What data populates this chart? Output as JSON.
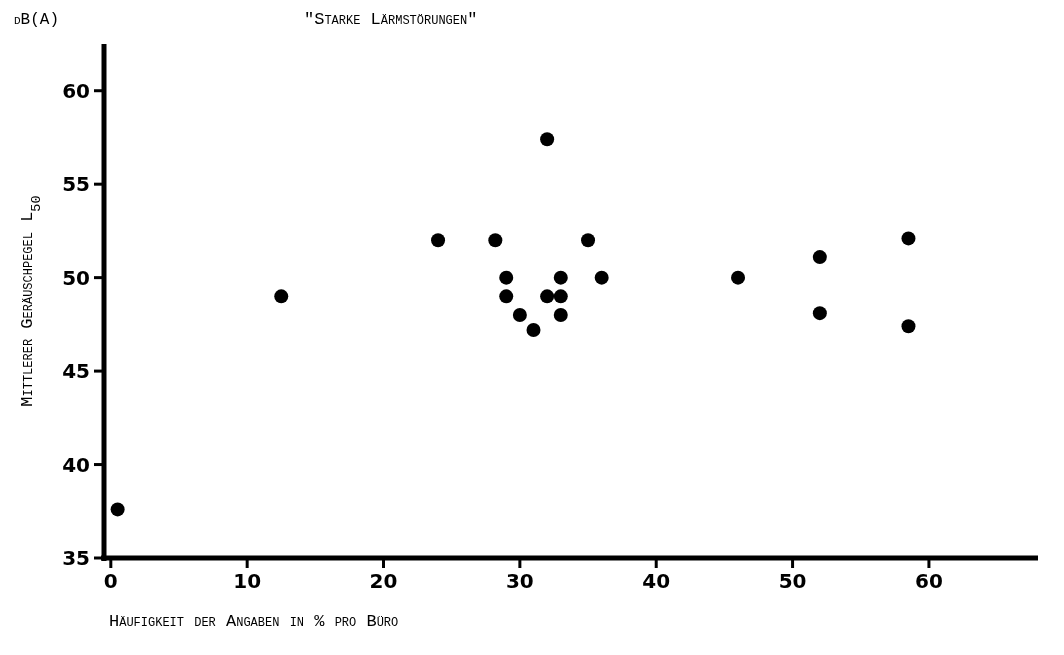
{
  "chart_data": {
    "type": "scatter",
    "title": "\"Starke Lärmstörungen\"",
    "xlabel": "Häufigkeit der Angaben in % pro Büro",
    "ylabel": "Mittlerer Geräuschpegel L$_{50}$",
    "annotations": [
      "dB(A)"
    ],
    "x": [
      0.5,
      12.5,
      24,
      28.2,
      29,
      29,
      30,
      31,
      32,
      32,
      33,
      33,
      33,
      35,
      36,
      46,
      52,
      52,
      58.5,
      58.5
    ],
    "series": [
      {
        "color": "#000000",
        "values": [
          37.6,
          49,
          52,
          52,
          50,
          49,
          48,
          47.2,
          57.4,
          49,
          50,
          49,
          48,
          52,
          50,
          50,
          51.1,
          48.1,
          52.1,
          47.4
        ]
      }
    ],
    "xlim": [
      -0.5,
      68
    ],
    "ylim": [
      35,
      62.5
    ],
    "xticks": [
      0,
      10,
      20,
      30,
      40,
      50,
      60
    ],
    "yticks": [
      35,
      40,
      45,
      50,
      55,
      60
    ],
    "marker": "circle",
    "grid": false
  }
}
